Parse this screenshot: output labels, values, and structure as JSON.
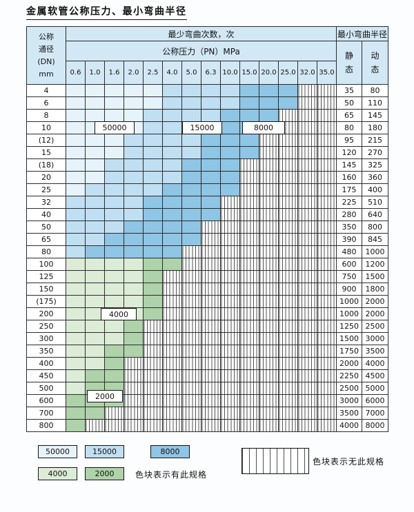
{
  "title": "金属软管公称压力、最小弯曲半径",
  "colors": {
    "header": "#d3e8f5",
    "b50": "#e7f3fb",
    "b15": "#c0dff2",
    "b8": "#8fc5e5",
    "g4": "#dcecd7",
    "g2": "#aed2a9"
  },
  "header": {
    "dn_lines": [
      "公称",
      "通径",
      "(DN)",
      "mm"
    ],
    "cycles_title": "最少弯曲次数，次",
    "pressure_title": "公称压力（PN）MPa",
    "radius_title": "最小弯曲半径",
    "static_chars": [
      "静",
      "态"
    ],
    "dynamic_chars": [
      "动",
      "态"
    ]
  },
  "matrix_labels": {
    "l50000": "50000",
    "l15000": "15000",
    "l8000": "8000",
    "l4000": "4000",
    "l2000": "2000"
  },
  "legend": {
    "items": [
      {
        "label": "50000",
        "key": "b50"
      },
      {
        "label": "15000",
        "key": "b15"
      },
      {
        "label": "8000",
        "key": "b8"
      },
      {
        "label": "4000",
        "key": "g4"
      },
      {
        "label": "2000",
        "key": "g2"
      }
    ],
    "has_spec_text": "色块表示有此规格",
    "no_spec_text": "色块表示无此规格"
  },
  "chart_data": {
    "type": "table",
    "title": "金属软管公称压力、最小弯曲半径",
    "x_label": "公称压力（PN）MPa",
    "x": [
      "0.6",
      "1.0",
      "1.6",
      "2.0",
      "2.5",
      "4.0",
      "5.0",
      "6.3",
      "10.0",
      "15.0",
      "20.0",
      "25.0",
      "32.0",
      "35.0"
    ],
    "y_label": "公称通径(DN) mm",
    "cell_meaning": "最少弯曲次数（次），null = 无此规格(hatched)",
    "cycle_levels": [
      50000,
      15000,
      8000,
      4000,
      2000
    ],
    "radius_columns": [
      "静态",
      "动态"
    ],
    "rows": [
      {
        "dn": "4",
        "cycles": [
          50000,
          50000,
          50000,
          50000,
          50000,
          15000,
          15000,
          15000,
          15000,
          8000,
          8000,
          8000,
          null,
          null
        ],
        "static": 35,
        "dynamic": 80
      },
      {
        "dn": "6",
        "cycles": [
          50000,
          50000,
          50000,
          50000,
          50000,
          15000,
          15000,
          15000,
          15000,
          8000,
          8000,
          8000,
          null,
          null
        ],
        "static": 50,
        "dynamic": 110
      },
      {
        "dn": "8",
        "cycles": [
          50000,
          50000,
          50000,
          50000,
          15000,
          15000,
          15000,
          15000,
          8000,
          8000,
          8000,
          null,
          null,
          null
        ],
        "static": 65,
        "dynamic": 145
      },
      {
        "dn": "10",
        "cycles": [
          50000,
          50000,
          50000,
          50000,
          15000,
          15000,
          15000,
          15000,
          8000,
          8000,
          8000,
          null,
          null,
          null
        ],
        "static": 80,
        "dynamic": 180
      },
      {
        "dn": "(12)",
        "cycles": [
          50000,
          50000,
          50000,
          15000,
          15000,
          15000,
          15000,
          8000,
          8000,
          8000,
          null,
          null,
          null,
          null
        ],
        "static": 95,
        "dynamic": 215
      },
      {
        "dn": "15",
        "cycles": [
          50000,
          50000,
          50000,
          15000,
          15000,
          15000,
          15000,
          8000,
          8000,
          8000,
          null,
          null,
          null,
          null
        ],
        "static": 120,
        "dynamic": 270
      },
      {
        "dn": "(18)",
        "cycles": [
          50000,
          50000,
          15000,
          15000,
          15000,
          15000,
          8000,
          8000,
          8000,
          null,
          null,
          null,
          null,
          null
        ],
        "static": 145,
        "dynamic": 325
      },
      {
        "dn": "20",
        "cycles": [
          50000,
          50000,
          15000,
          15000,
          15000,
          15000,
          8000,
          8000,
          8000,
          null,
          null,
          null,
          null,
          null
        ],
        "static": 160,
        "dynamic": 360
      },
      {
        "dn": "25",
        "cycles": [
          50000,
          15000,
          15000,
          15000,
          15000,
          8000,
          8000,
          8000,
          8000,
          null,
          null,
          null,
          null,
          null
        ],
        "static": 175,
        "dynamic": 400
      },
      {
        "dn": "32",
        "cycles": [
          15000,
          15000,
          15000,
          15000,
          8000,
          8000,
          8000,
          8000,
          null,
          null,
          null,
          null,
          null,
          null
        ],
        "static": 225,
        "dynamic": 510
      },
      {
        "dn": "40",
        "cycles": [
          15000,
          15000,
          15000,
          15000,
          8000,
          8000,
          8000,
          8000,
          null,
          null,
          null,
          null,
          null,
          null
        ],
        "static": 280,
        "dynamic": 640
      },
      {
        "dn": "50",
        "cycles": [
          15000,
          15000,
          15000,
          8000,
          8000,
          8000,
          8000,
          null,
          null,
          null,
          null,
          null,
          null,
          null
        ],
        "static": 350,
        "dynamic": 800
      },
      {
        "dn": "65",
        "cycles": [
          15000,
          15000,
          8000,
          8000,
          8000,
          8000,
          8000,
          null,
          null,
          null,
          null,
          null,
          null,
          null
        ],
        "static": 390,
        "dynamic": 845
      },
      {
        "dn": "80",
        "cycles": [
          15000,
          8000,
          8000,
          8000,
          8000,
          8000,
          null,
          null,
          null,
          null,
          null,
          null,
          null,
          null
        ],
        "static": 480,
        "dynamic": 1000
      },
      {
        "dn": "100",
        "cycles": [
          4000,
          4000,
          4000,
          4000,
          2000,
          2000,
          null,
          null,
          null,
          null,
          null,
          null,
          null,
          null
        ],
        "static": 600,
        "dynamic": 1200
      },
      {
        "dn": "125",
        "cycles": [
          4000,
          4000,
          4000,
          4000,
          2000,
          null,
          null,
          null,
          null,
          null,
          null,
          null,
          null,
          null
        ],
        "static": 750,
        "dynamic": 1500
      },
      {
        "dn": "150",
        "cycles": [
          4000,
          4000,
          4000,
          4000,
          2000,
          null,
          null,
          null,
          null,
          null,
          null,
          null,
          null,
          null
        ],
        "static": 900,
        "dynamic": 1800
      },
      {
        "dn": "(175)",
        "cycles": [
          4000,
          4000,
          4000,
          4000,
          2000,
          null,
          null,
          null,
          null,
          null,
          null,
          null,
          null,
          null
        ],
        "static": 1000,
        "dynamic": 2000
      },
      {
        "dn": "200",
        "cycles": [
          4000,
          4000,
          4000,
          4000,
          2000,
          null,
          null,
          null,
          null,
          null,
          null,
          null,
          null,
          null
        ],
        "static": 1000,
        "dynamic": 2000
      },
      {
        "dn": "250",
        "cycles": [
          4000,
          4000,
          4000,
          2000,
          null,
          null,
          null,
          null,
          null,
          null,
          null,
          null,
          null,
          null
        ],
        "static": 1250,
        "dynamic": 2500
      },
      {
        "dn": "300",
        "cycles": [
          4000,
          4000,
          4000,
          2000,
          null,
          null,
          null,
          null,
          null,
          null,
          null,
          null,
          null,
          null
        ],
        "static": 1500,
        "dynamic": 3000
      },
      {
        "dn": "350",
        "cycles": [
          4000,
          4000,
          2000,
          2000,
          null,
          null,
          null,
          null,
          null,
          null,
          null,
          null,
          null,
          null
        ],
        "static": 1750,
        "dynamic": 3500
      },
      {
        "dn": "400",
        "cycles": [
          4000,
          4000,
          2000,
          null,
          null,
          null,
          null,
          null,
          null,
          null,
          null,
          null,
          null,
          null
        ],
        "static": 2000,
        "dynamic": 4000
      },
      {
        "dn": "450",
        "cycles": [
          4000,
          2000,
          2000,
          null,
          null,
          null,
          null,
          null,
          null,
          null,
          null,
          null,
          null,
          null
        ],
        "static": 2250,
        "dynamic": 4500
      },
      {
        "dn": "500",
        "cycles": [
          4000,
          2000,
          2000,
          null,
          null,
          null,
          null,
          null,
          null,
          null,
          null,
          null,
          null,
          null
        ],
        "static": 2500,
        "dynamic": 5000
      },
      {
        "dn": "600",
        "cycles": [
          2000,
          2000,
          2000,
          null,
          null,
          null,
          null,
          null,
          null,
          null,
          null,
          null,
          null,
          null
        ],
        "static": 3000,
        "dynamic": 6000
      },
      {
        "dn": "700",
        "cycles": [
          2000,
          2000,
          null,
          null,
          null,
          null,
          null,
          null,
          null,
          null,
          null,
          null,
          null,
          null
        ],
        "static": 3500,
        "dynamic": 7000
      },
      {
        "dn": "800",
        "cycles": [
          2000,
          null,
          null,
          null,
          null,
          null,
          null,
          null,
          null,
          null,
          null,
          null,
          null,
          null
        ],
        "static": 4000,
        "dynamic": 8000
      }
    ]
  }
}
